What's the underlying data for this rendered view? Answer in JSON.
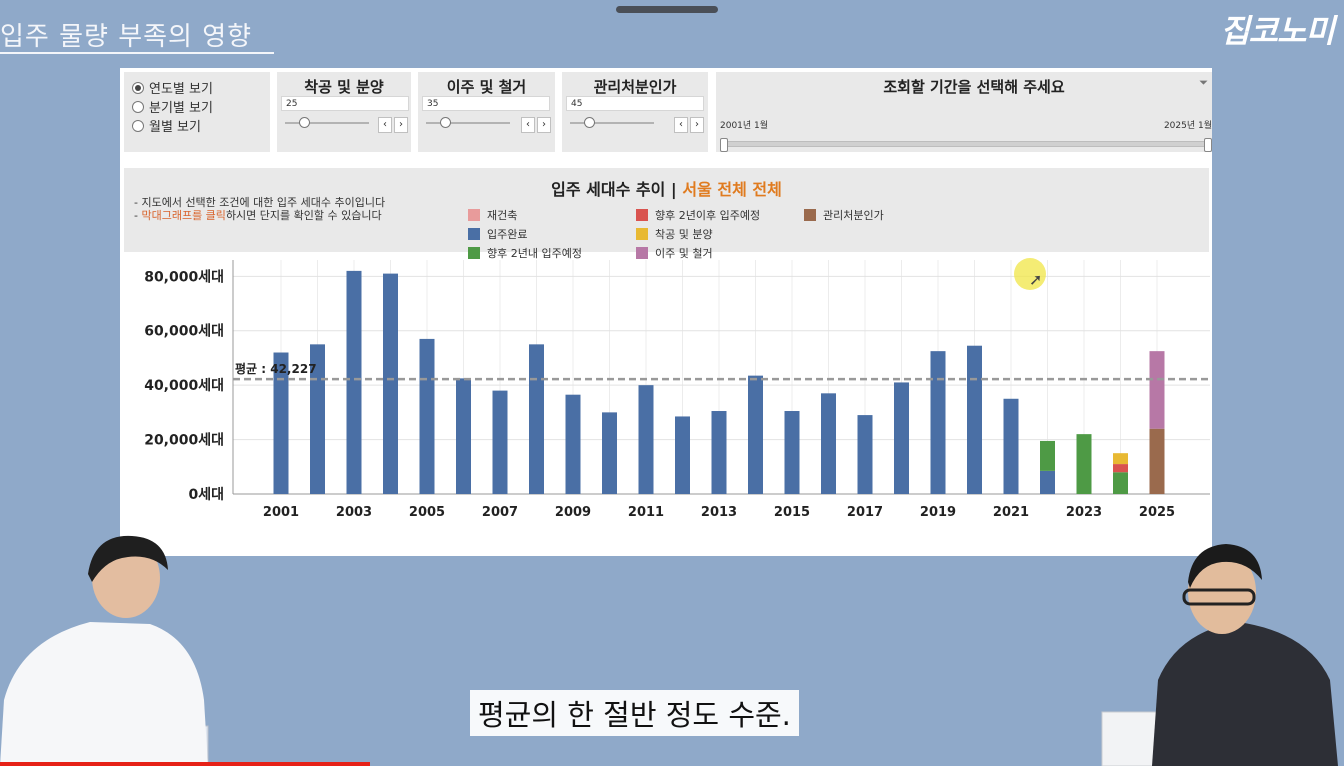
{
  "video": {
    "title": "입주 물량 부족의 영향",
    "logo": "집코노미",
    "subtitle": "평균의 한 절반 정도 수준."
  },
  "controls": {
    "view_options": [
      {
        "label": "연도별 보기",
        "selected": true
      },
      {
        "label": "분기별 보기",
        "selected": false
      },
      {
        "label": "월별 보기",
        "selected": false
      }
    ],
    "params": [
      {
        "title": "착공 및 분양",
        "value": "25"
      },
      {
        "title": "이주 및 철거",
        "value": "35"
      },
      {
        "title": "관리처분인가",
        "value": "45"
      }
    ],
    "period": {
      "title": "조회할 기간을 선택해 주세요",
      "start": "2001년 1월",
      "end": "2025년 1월"
    }
  },
  "notes": {
    "line1": "- 지도에서 선택한 조건에 대한 입주 세대수 추이입니다",
    "line2_prefix": "- ",
    "line2_highlight": "막대그래프를 클릭",
    "line2_suffix": "하시면 단지를 확인할 수 있습니다"
  },
  "chart_data": {
    "type": "bar",
    "title": "입주 세대수 추이 | ",
    "title_highlight": "서울 전체 전체",
    "stacked": true,
    "x": [
      2001,
      2002,
      2003,
      2004,
      2005,
      2006,
      2007,
      2008,
      2009,
      2010,
      2011,
      2012,
      2013,
      2014,
      2015,
      2016,
      2017,
      2018,
      2019,
      2020,
      2021,
      2022,
      2023,
      2024,
      2025
    ],
    "x_tick_labels": [
      "2001",
      "2003",
      "2005",
      "2007",
      "2009",
      "2011",
      "2013",
      "2015",
      "2017",
      "2019",
      "2021",
      "2023",
      "2025"
    ],
    "y_tick_labels": [
      "80,000세대",
      "60,000세대",
      "40,000세대",
      "20,000세대",
      "0세대"
    ],
    "ylim": [
      0,
      86000
    ],
    "series": [
      {
        "name": "재건축",
        "color": "#e89b9b",
        "values": [
          0,
          0,
          0,
          0,
          0,
          0,
          0,
          0,
          0,
          0,
          0,
          0,
          0,
          0,
          0,
          0,
          0,
          0,
          0,
          0,
          0,
          0,
          0,
          0,
          0
        ]
      },
      {
        "name": "입주완료",
        "color": "#4a6fa5",
        "values": [
          52000,
          55000,
          82000,
          81000,
          57000,
          42500,
          38000,
          55000,
          36500,
          30000,
          40000,
          28500,
          30500,
          43500,
          30500,
          37000,
          29000,
          41000,
          52500,
          54500,
          35000,
          8500,
          0,
          0,
          0
        ]
      },
      {
        "name": "향후 2년내 입주예정",
        "color": "#4e9a45",
        "values": [
          0,
          0,
          0,
          0,
          0,
          0,
          0,
          0,
          0,
          0,
          0,
          0,
          0,
          0,
          0,
          0,
          0,
          0,
          0,
          0,
          0,
          11000,
          22000,
          8000,
          0
        ]
      },
      {
        "name": "향후 2년이후 입주예정",
        "color": "#d9534f",
        "values": [
          0,
          0,
          0,
          0,
          0,
          0,
          0,
          0,
          0,
          0,
          0,
          0,
          0,
          0,
          0,
          0,
          0,
          0,
          0,
          0,
          0,
          0,
          0,
          3000,
          0
        ]
      },
      {
        "name": "착공 및 분양",
        "color": "#e8b933",
        "values": [
          0,
          0,
          0,
          0,
          0,
          0,
          0,
          0,
          0,
          0,
          0,
          0,
          0,
          0,
          0,
          0,
          0,
          0,
          0,
          0,
          0,
          0,
          0,
          4000,
          0
        ]
      },
      {
        "name": "관리처분인가",
        "color": "#9a6a4d",
        "values": [
          0,
          0,
          0,
          0,
          0,
          0,
          0,
          0,
          0,
          0,
          0,
          0,
          0,
          0,
          0,
          0,
          0,
          0,
          0,
          0,
          0,
          0,
          0,
          0,
          24000
        ]
      },
      {
        "name": "이주 및 철거",
        "color": "#b778a6",
        "values": [
          0,
          0,
          0,
          0,
          0,
          0,
          0,
          0,
          0,
          0,
          0,
          0,
          0,
          0,
          0,
          0,
          0,
          0,
          0,
          0,
          0,
          0,
          0,
          0,
          28500
        ]
      }
    ],
    "average": {
      "label": "평균 : 42,227",
      "value": 42227
    },
    "grid": true,
    "legend_position": "top"
  }
}
